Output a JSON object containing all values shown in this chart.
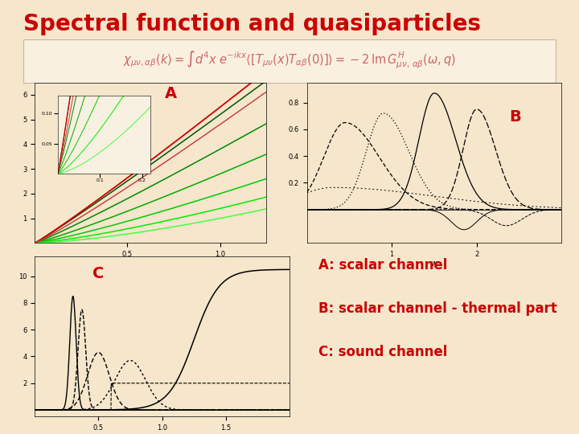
{
  "title": "Spectral function and quasiparticles",
  "title_color": "#cc0000",
  "bg_color": "#f5e6cc",
  "label_A": "A",
  "label_B": "B",
  "label_C": "C",
  "desc_A": "A: scalar channel",
  "desc_B": "B: scalar channel - thermal part",
  "desc_C": "C: sound channel",
  "label_color": "#cc0000",
  "desc_color": "#cc0000"
}
